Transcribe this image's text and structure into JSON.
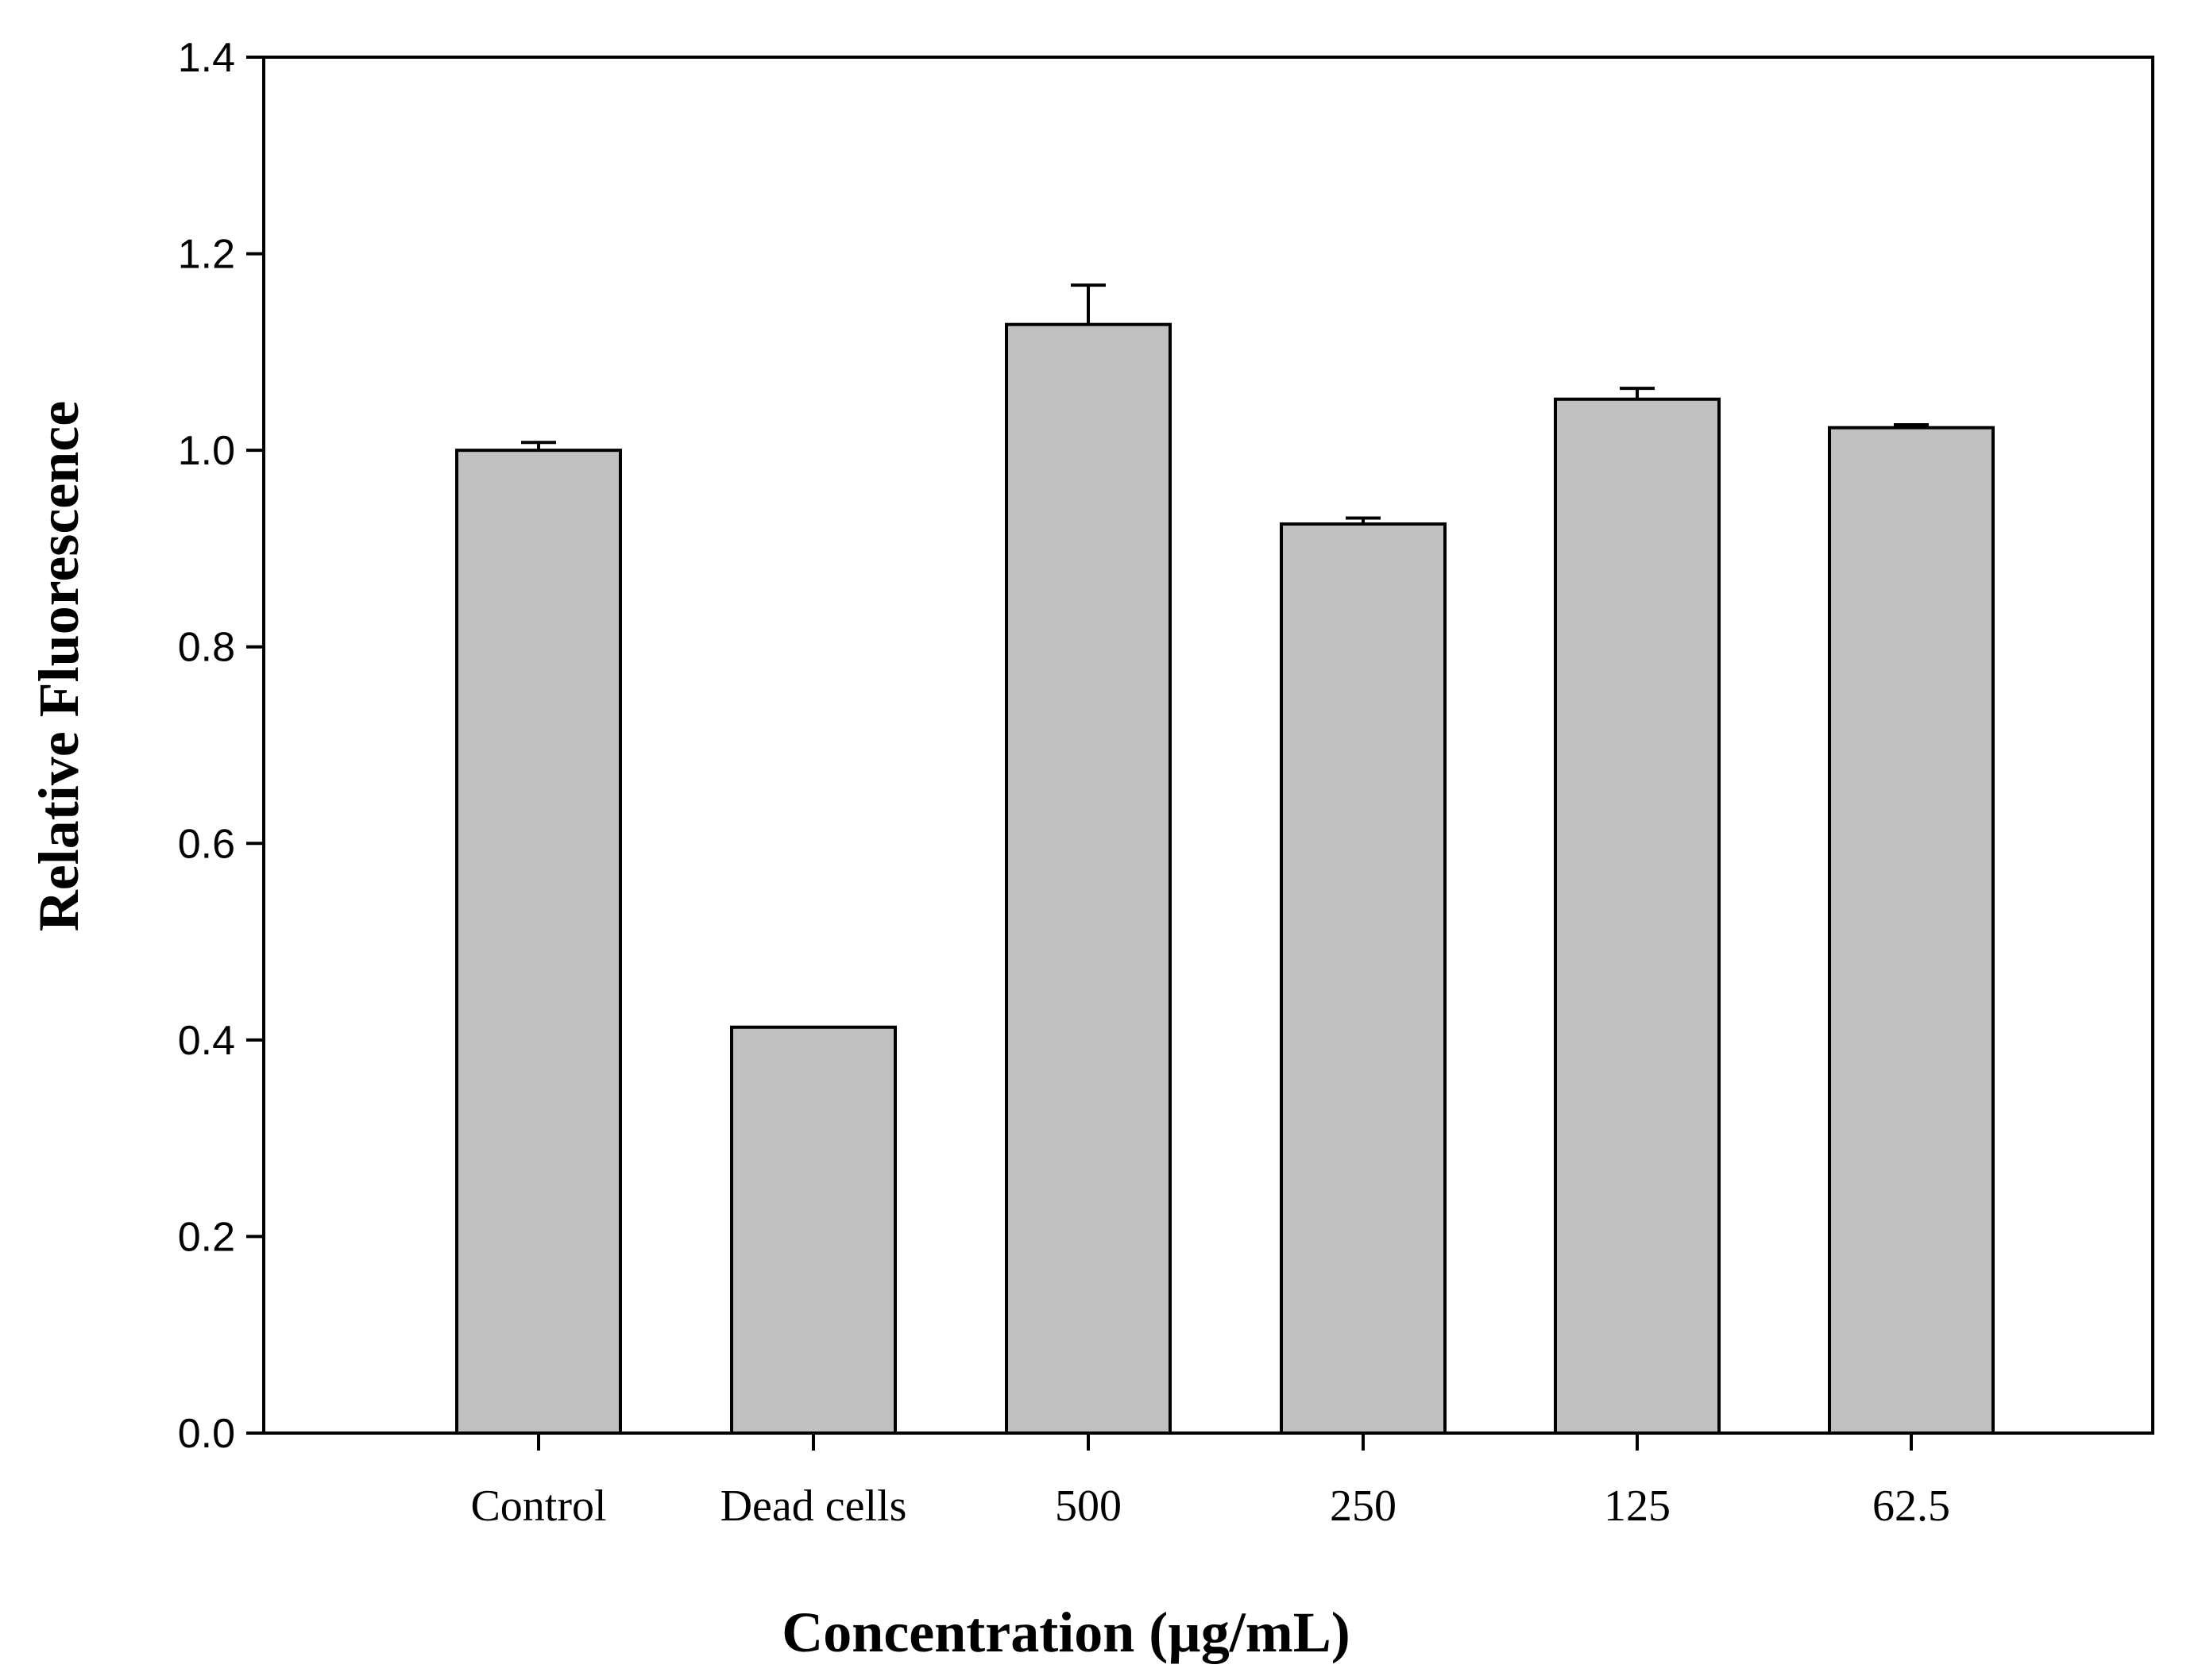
{
  "chart_data": {
    "type": "bar",
    "title": "",
    "xlabel": "Concentration (µg/mL)",
    "ylabel": "Relative Fluorescence",
    "categories": [
      "Control",
      "Dead cells",
      "500",
      "250",
      "125",
      "62.5"
    ],
    "values": [
      1.0,
      0.413,
      1.128,
      0.925,
      1.052,
      1.023
    ],
    "errors": [
      0.008,
      0.0,
      0.04,
      0.006,
      0.011,
      0.003
    ],
    "ylim": [
      0,
      1.4
    ],
    "yticks": [
      "0.0",
      "0.2",
      "0.4",
      "0.6",
      "0.8",
      "1.0",
      "1.2",
      "1.4"
    ],
    "bar_color": "#c0c0c0",
    "grid": false
  }
}
